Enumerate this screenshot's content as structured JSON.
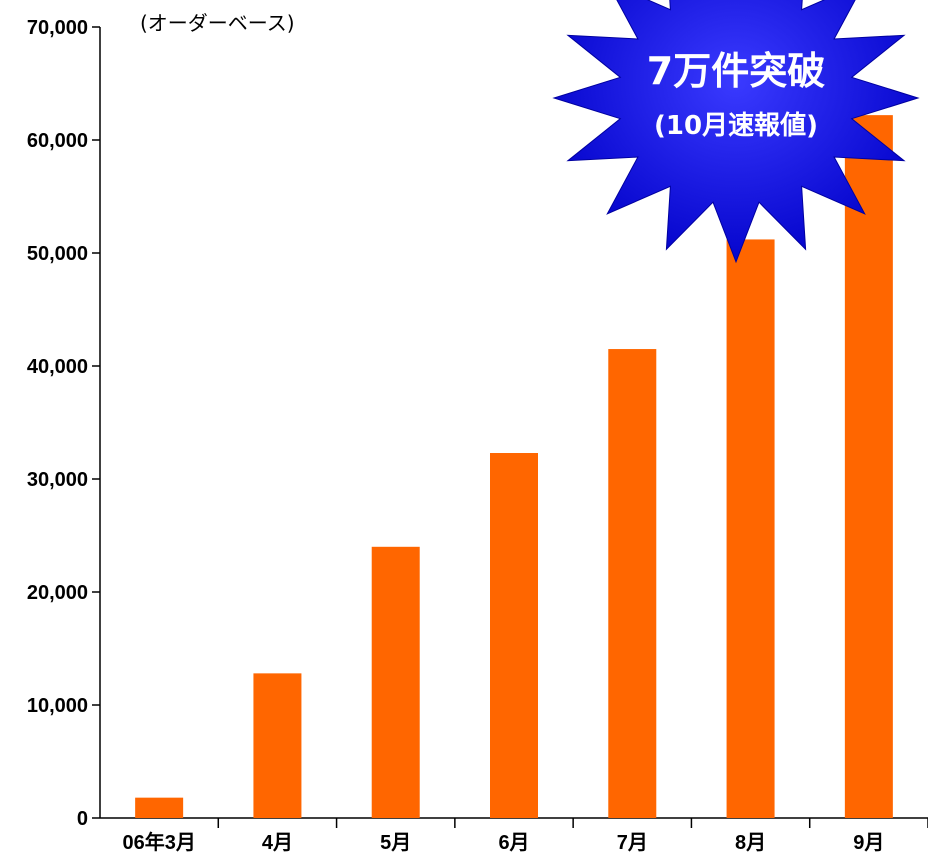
{
  "chart_data": {
    "type": "bar",
    "categories": [
      "06年3月",
      "4月",
      "5月",
      "6月",
      "7月",
      "8月",
      "9月"
    ],
    "values": [
      1800,
      12800,
      24000,
      32300,
      41500,
      51200,
      62200
    ],
    "ylim": [
      0,
      70000
    ],
    "yticks": [
      0,
      10000,
      20000,
      30000,
      40000,
      50000,
      60000,
      70000
    ],
    "ytick_labels": [
      "0",
      "10,000",
      "20,000",
      "30,000",
      "40,000",
      "50,000",
      "60,000",
      "70,000"
    ],
    "unit_label": "(オーダーベース)",
    "bar_color": "#FF6600",
    "grid": false,
    "legend": "none"
  },
  "callout": {
    "title": "7万件突破",
    "subtitle": "(10月速報値)",
    "fill_color": "#1010E0",
    "text_color": "#FFFFFF"
  }
}
